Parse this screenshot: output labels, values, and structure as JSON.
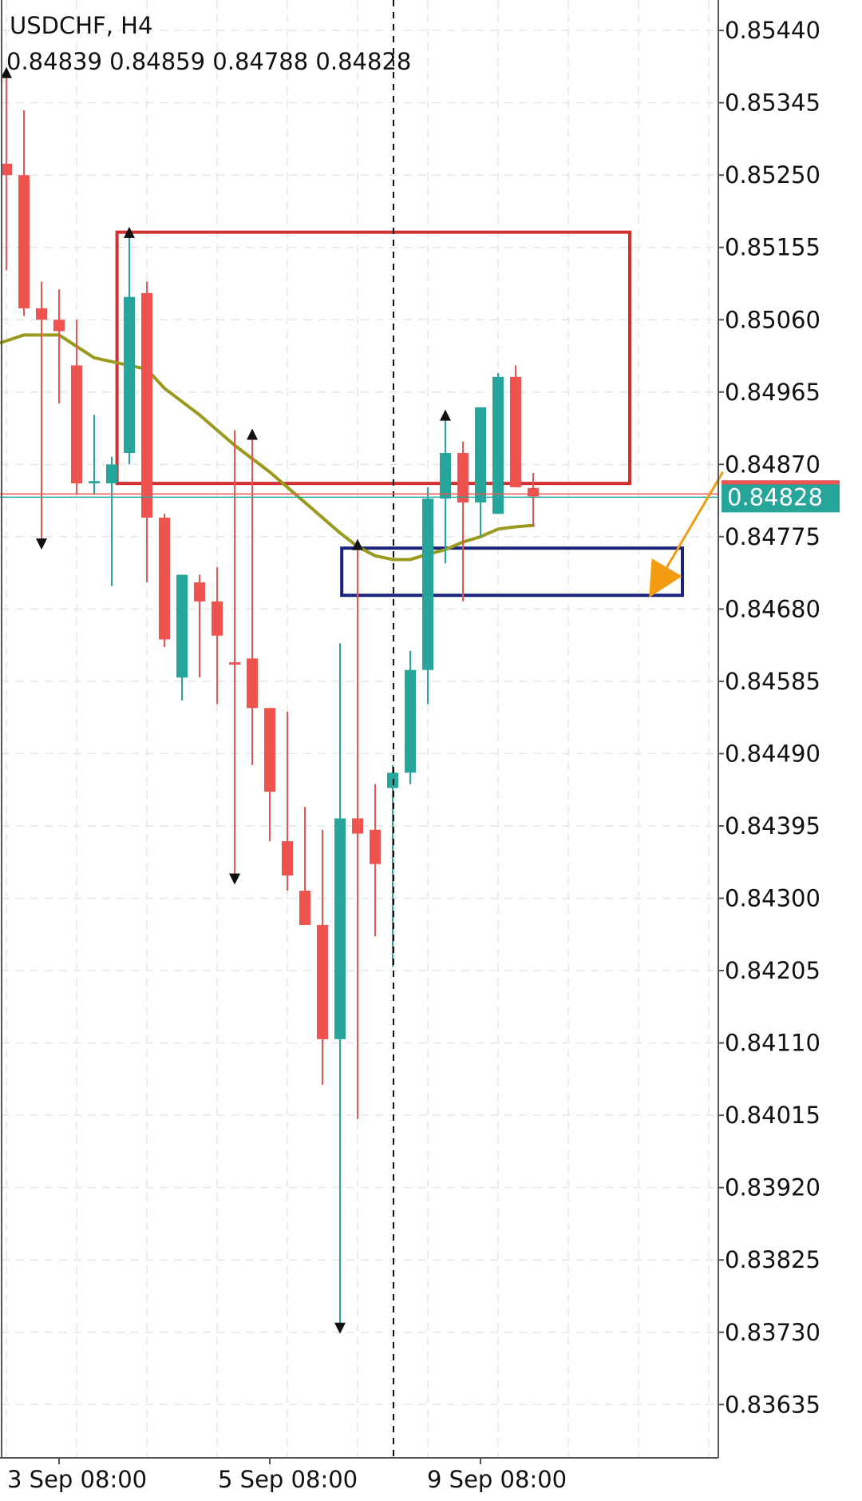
{
  "header": {
    "symbol_timeframe": "USDCHF, H4",
    "ohlc": "0.84839 0.84859 0.84788 0.84828"
  },
  "colors": {
    "bull": "#26a69a",
    "bear": "#ef5350",
    "ma": "#9a9a1e",
    "supply_zone": "#d32f2f",
    "demand_zone": "#1a237e",
    "arrow": "#f39c12",
    "grid": "#e6e6e6",
    "price_tag": "#26a69a",
    "price_tag_top": "#ef5350"
  },
  "chart_data": {
    "type": "candlestick",
    "symbol": "USDCHF",
    "timeframe": "H4",
    "y_ticks": [
      "0.85440",
      "0.85345",
      "0.85250",
      "0.85155",
      "0.85060",
      "0.84965",
      "0.84870",
      "0.84775",
      "0.84680",
      "0.84585",
      "0.84490",
      "0.84395",
      "0.84300",
      "0.84205",
      "0.84110",
      "0.84015",
      "0.83920",
      "0.83825",
      "0.83730",
      "0.83635"
    ],
    "ylim": [
      0.83565,
      0.8548
    ],
    "x_labels": [
      {
        "text": "3 Sep 08:00",
        "index": 5
      },
      {
        "text": "5 Sep 08:00",
        "index": 17
      },
      {
        "text": "9 Sep 08:00",
        "index": 29
      }
    ],
    "current_price": "0.84828",
    "current_price_value": 0.84828,
    "candles": [
      {
        "o": 0.85265,
        "h": 0.8539,
        "l": 0.85125,
        "c": 0.8525
      },
      {
        "o": 0.8525,
        "h": 0.85335,
        "l": 0.85065,
        "c": 0.85075
      },
      {
        "o": 0.85075,
        "h": 0.8511,
        "l": 0.8476,
        "c": 0.8506
      },
      {
        "o": 0.8506,
        "h": 0.851,
        "l": 0.8495,
        "c": 0.85045
      },
      {
        "o": 0.85,
        "h": 0.8506,
        "l": 0.8483,
        "c": 0.84845
      },
      {
        "o": 0.84845,
        "h": 0.84935,
        "l": 0.8483,
        "c": 0.84848
      },
      {
        "o": 0.84845,
        "h": 0.8488,
        "l": 0.8471,
        "c": 0.8487
      },
      {
        "o": 0.84885,
        "h": 0.8518,
        "l": 0.8487,
        "c": 0.8509
      },
      {
        "o": 0.85095,
        "h": 0.8511,
        "l": 0.84715,
        "c": 0.848
      },
      {
        "o": 0.848,
        "h": 0.84805,
        "l": 0.8463,
        "c": 0.8464
      },
      {
        "o": 0.8459,
        "h": 0.8472,
        "l": 0.8456,
        "c": 0.84725
      },
      {
        "o": 0.84715,
        "h": 0.84725,
        "l": 0.8459,
        "c": 0.8469
      },
      {
        "o": 0.8469,
        "h": 0.84735,
        "l": 0.84555,
        "c": 0.84645
      },
      {
        "o": 0.8461,
        "h": 0.84915,
        "l": 0.8432,
        "c": 0.84607
      },
      {
        "o": 0.84615,
        "h": 0.84915,
        "l": 0.84475,
        "c": 0.8455
      },
      {
        "o": 0.8455,
        "h": 0.84545,
        "l": 0.84375,
        "c": 0.8444
      },
      {
        "o": 0.84375,
        "h": 0.84545,
        "l": 0.8431,
        "c": 0.8433
      },
      {
        "o": 0.8431,
        "h": 0.8442,
        "l": 0.84265,
        "c": 0.84265
      },
      {
        "o": 0.84265,
        "h": 0.8439,
        "l": 0.84055,
        "c": 0.84115
      },
      {
        "o": 0.84115,
        "h": 0.84635,
        "l": 0.8373,
        "c": 0.84405
      },
      {
        "o": 0.84405,
        "h": 0.8477,
        "l": 0.8401,
        "c": 0.84385
      },
      {
        "o": 0.8439,
        "h": 0.8445,
        "l": 0.8425,
        "c": 0.84345
      },
      {
        "o": 0.84445,
        "h": 0.84475,
        "l": 0.8421,
        "c": 0.84465
      },
      {
        "o": 0.84465,
        "h": 0.84625,
        "l": 0.8445,
        "c": 0.846
      },
      {
        "o": 0.846,
        "h": 0.8484,
        "l": 0.84555,
        "c": 0.84825
      },
      {
        "o": 0.84825,
        "h": 0.8494,
        "l": 0.8474,
        "c": 0.84885
      },
      {
        "o": 0.84885,
        "h": 0.849,
        "l": 0.8469,
        "c": 0.8482
      },
      {
        "o": 0.8482,
        "h": 0.84945,
        "l": 0.84775,
        "c": 0.84945
      },
      {
        "o": 0.84805,
        "h": 0.8499,
        "l": 0.84805,
        "c": 0.84985
      },
      {
        "o": 0.84985,
        "h": 0.85,
        "l": 0.8484,
        "c": 0.8484
      },
      {
        "o": 0.84839,
        "h": 0.84859,
        "l": 0.84788,
        "c": 0.84828
      }
    ],
    "moving_average": [
      {
        "i": -0.3,
        "v": 0.8503
      },
      {
        "i": 1,
        "v": 0.8504
      },
      {
        "i": 3,
        "v": 0.8504
      },
      {
        "i": 5,
        "v": 0.8501
      },
      {
        "i": 7,
        "v": 0.85
      },
      {
        "i": 8,
        "v": 0.84995
      },
      {
        "i": 9,
        "v": 0.8497
      },
      {
        "i": 11,
        "v": 0.84935
      },
      {
        "i": 13,
        "v": 0.84895
      },
      {
        "i": 15,
        "v": 0.8486
      },
      {
        "i": 17,
        "v": 0.8482
      },
      {
        "i": 18,
        "v": 0.848
      },
      {
        "i": 19,
        "v": 0.8478
      },
      {
        "i": 20,
        "v": 0.84762
      },
      {
        "i": 21,
        "v": 0.8475
      },
      {
        "i": 22,
        "v": 0.84745
      },
      {
        "i": 23,
        "v": 0.84745
      },
      {
        "i": 24,
        "v": 0.84752
      },
      {
        "i": 25,
        "v": 0.84758
      },
      {
        "i": 26,
        "v": 0.84768
      },
      {
        "i": 27,
        "v": 0.84775
      },
      {
        "i": 28,
        "v": 0.84785
      },
      {
        "i": 29,
        "v": 0.84788
      },
      {
        "i": 30,
        "v": 0.8479
      }
    ],
    "fractals": [
      {
        "i": 0,
        "v": 0.8539,
        "dir": "up"
      },
      {
        "i": 2,
        "v": 0.8476,
        "dir": "down"
      },
      {
        "i": 7,
        "v": 0.8518,
        "dir": "up"
      },
      {
        "i": 13,
        "v": 0.8432,
        "dir": "down"
      },
      {
        "i": 14,
        "v": 0.84915,
        "dir": "up"
      },
      {
        "i": 19,
        "v": 0.8373,
        "dir": "down"
      },
      {
        "i": 20,
        "v": 0.8477,
        "dir": "up"
      },
      {
        "i": 25,
        "v": 0.8494,
        "dir": "up"
      }
    ],
    "vertical_marker_index": 22,
    "supply_zone": {
      "i_start": 6.3,
      "i_end": 35.5,
      "top": 0.85175,
      "bottom": 0.84845
    },
    "demand_zone": {
      "i_start": 19.1,
      "i_end": 38.5,
      "top": 0.8476,
      "bottom": 0.84698
    },
    "projection_arrow": {
      "i_start": 40.8,
      "v_start": 0.8486,
      "i_end": 36.6,
      "v_end": 0.84695
    }
  }
}
